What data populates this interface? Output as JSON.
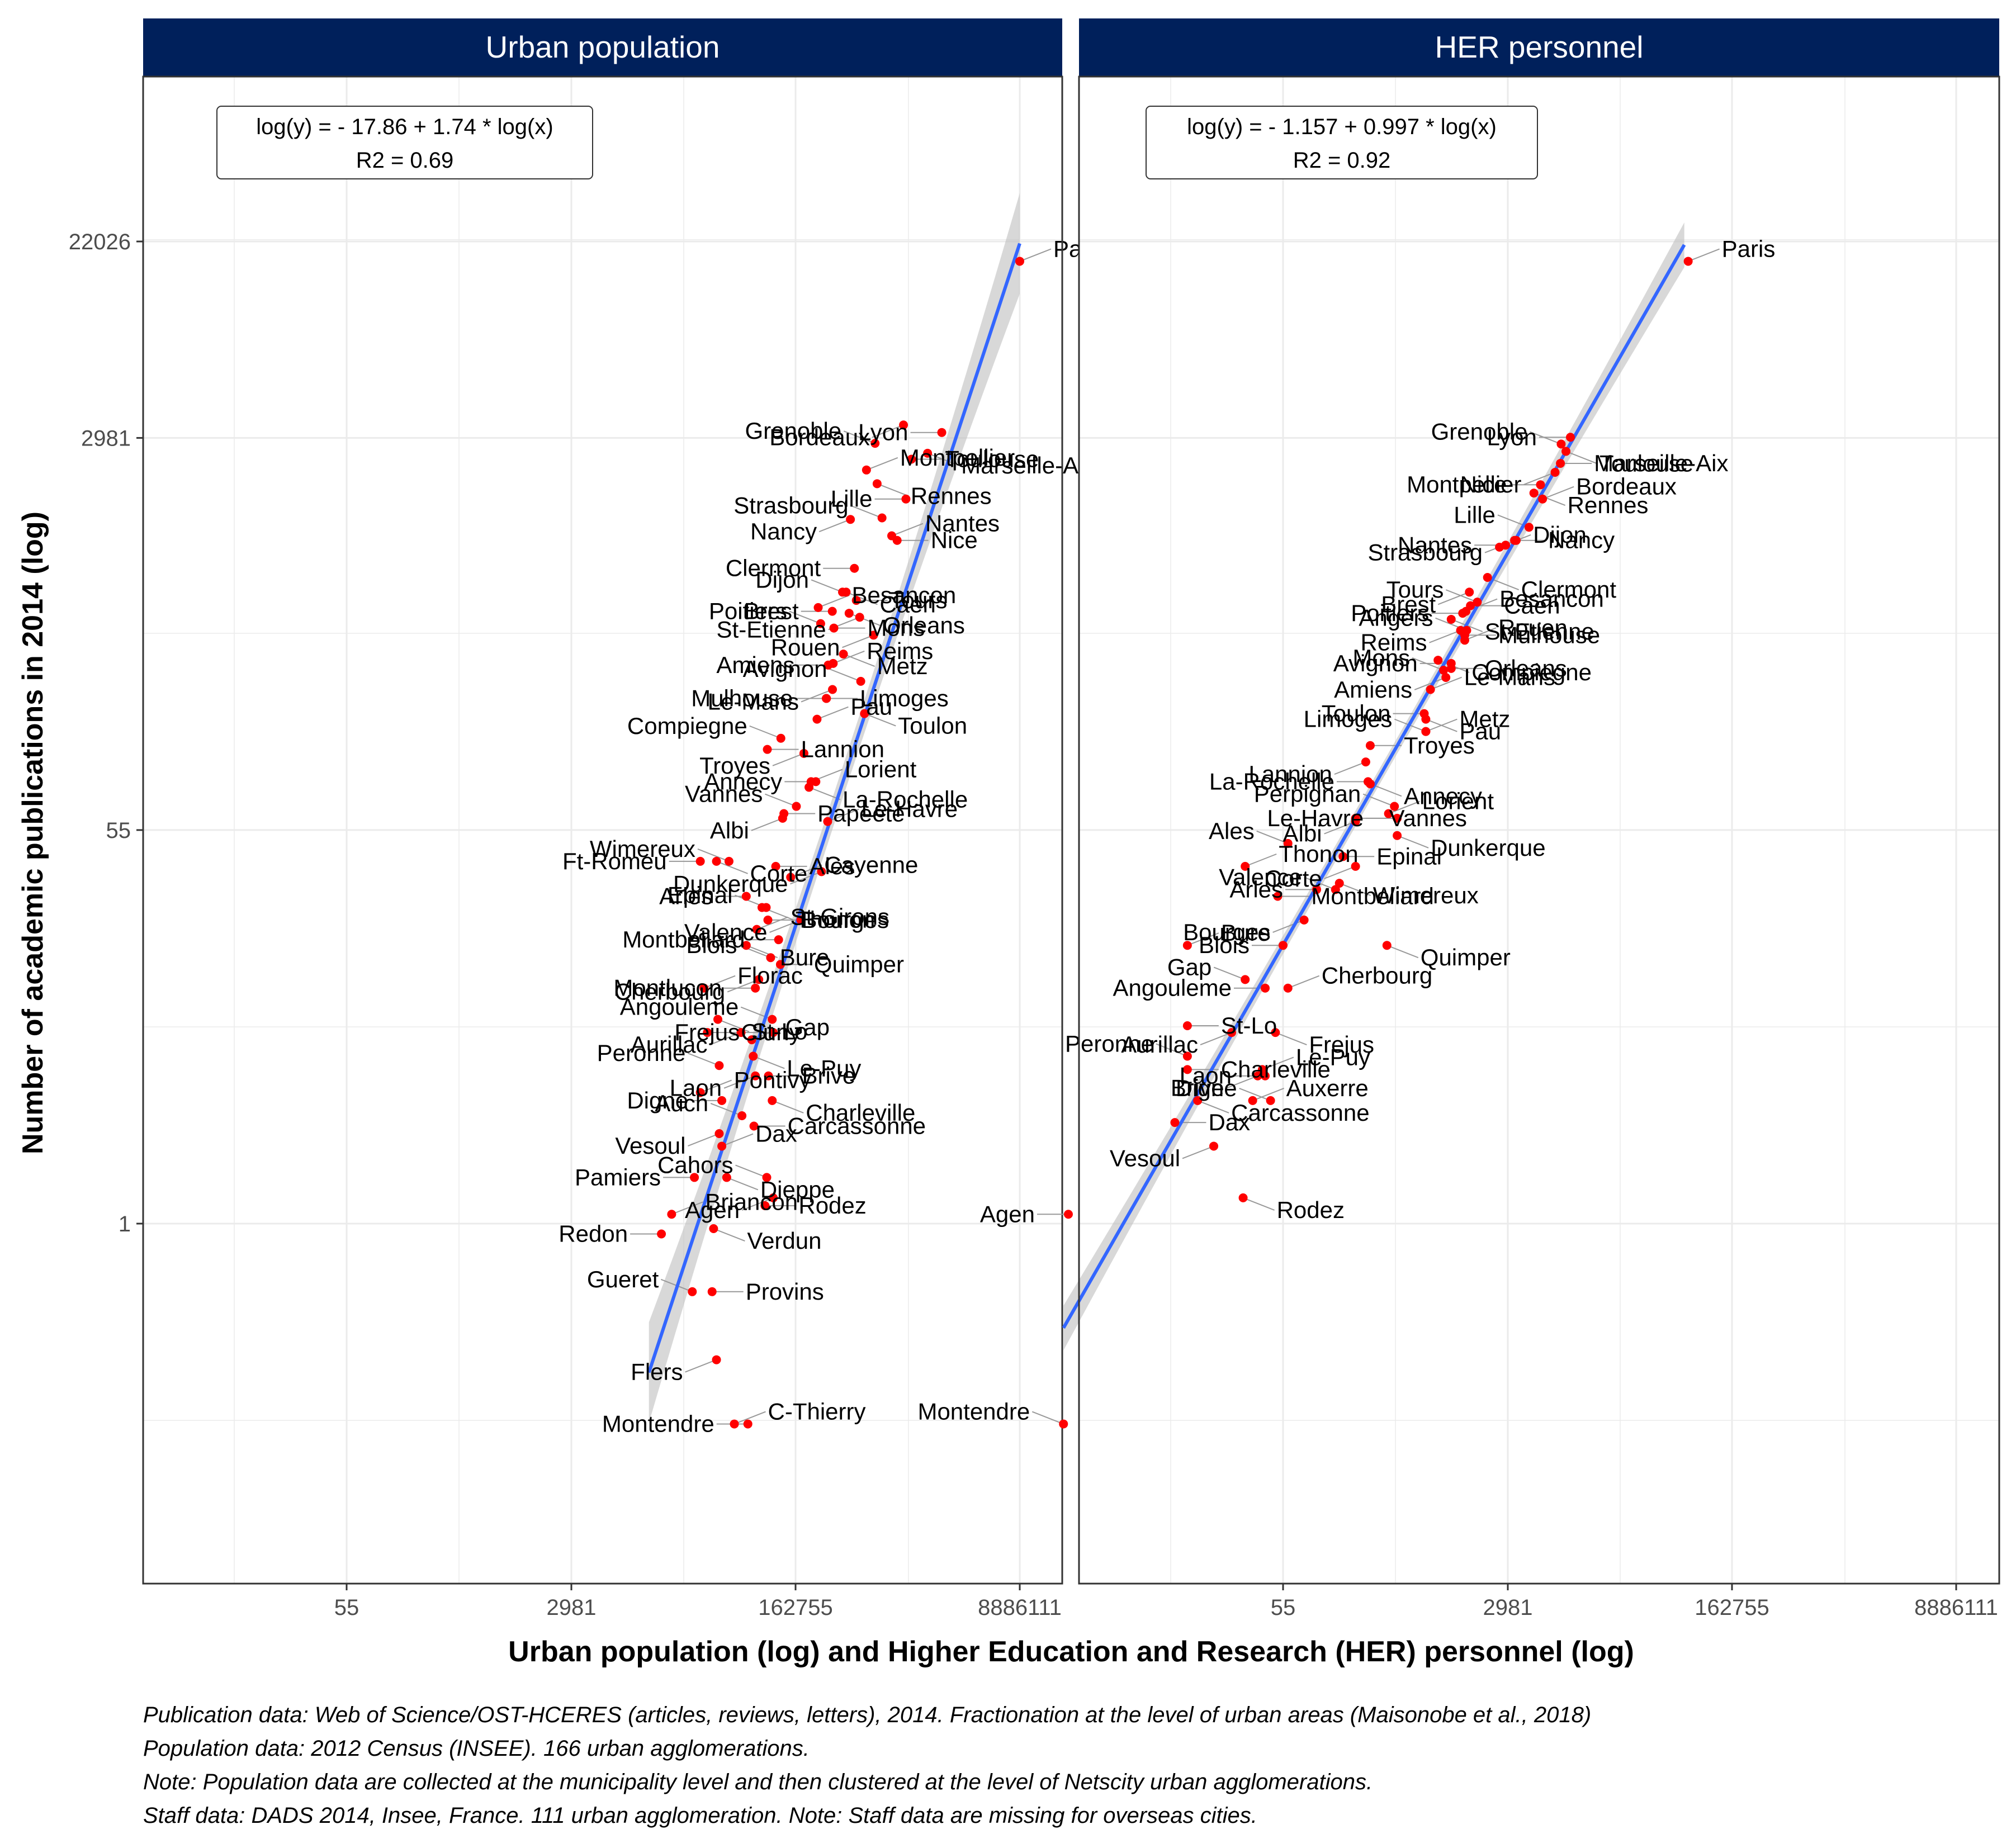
{
  "chart_data": {
    "type": "scatter",
    "x_scale": "log",
    "y_scale": "log",
    "ylabel": "Number of academic publications in 2014 (log)",
    "xlabel": "Urban population (log) and Higher Education and Research (HER) personnel (log)",
    "y_ticks": [
      "1",
      "55",
      "2981",
      "22026"
    ],
    "y_tick_values": [
      1,
      55,
      2981,
      22026
    ],
    "y_range": [
      0.04,
      100000
    ],
    "grid": true,
    "legend": "none",
    "colors": {
      "points": "#ff0000",
      "regression_line": "#3366ff",
      "confidence_band": "#bebebe",
      "strip": "#00205b",
      "leader_lines": "#999999",
      "grid": "#ebebeb"
    },
    "panels": [
      {
        "title": "Urban population",
        "x_ticks": [
          "55",
          "2981",
          "162755",
          "8886111"
        ],
        "x_tick_values": [
          55,
          2981,
          162755,
          8886111
        ],
        "x_range": [
          2.5,
          35000000
        ],
        "equation": "log(y) = - 17.86 + 1.74 * log(x)",
        "r2": "R2 = 0.69",
        "regression": {
          "intercept": -17.86,
          "slope": 1.74,
          "x_from": 12000,
          "x_to": 8886111
        },
        "labelled_points": [
          {
            "label": "Paris",
            "x": 8886111,
            "y": 18000
          },
          {
            "label": "Lyon",
            "x": 2215000,
            "y": 3150
          },
          {
            "label": "Marseille-Aix",
            "x": 1720000,
            "y": 2550
          },
          {
            "label": "Grenoble",
            "x": 675000,
            "y": 2820
          },
          {
            "label": "Toulouse",
            "x": 1290000,
            "y": 2400
          },
          {
            "label": "Bordeaux",
            "x": 1120000,
            "y": 3400
          },
          {
            "label": "Montpellier",
            "x": 579000,
            "y": 2150
          },
          {
            "label": "Lille",
            "x": 1170000,
            "y": 1600
          },
          {
            "label": "Rennes",
            "x": 700000,
            "y": 1870
          },
          {
            "label": "Strasbourg",
            "x": 764000,
            "y": 1320
          },
          {
            "label": "Nice",
            "x": 1000000,
            "y": 1050
          },
          {
            "label": "Nancy",
            "x": 435000,
            "y": 1300
          },
          {
            "label": "Nantes",
            "x": 908000,
            "y": 1100
          },
          {
            "label": "Clermont",
            "x": 467000,
            "y": 790
          },
          {
            "label": "Caen",
            "x": 403000,
            "y": 620
          },
          {
            "label": "Dijon",
            "x": 378000,
            "y": 620
          },
          {
            "label": "Tours",
            "x": 483000,
            "y": 570
          },
          {
            "label": "St-Etienne",
            "x": 513000,
            "y": 480
          },
          {
            "label": "Besancon",
            "x": 245000,
            "y": 530
          },
          {
            "label": "Brest",
            "x": 315000,
            "y": 510
          },
          {
            "label": "Orleans",
            "x": 425000,
            "y": 500
          },
          {
            "label": "Poitiers",
            "x": 256000,
            "y": 450
          },
          {
            "label": "Mons",
            "x": 324000,
            "y": 430
          },
          {
            "label": "Rouen",
            "x": 657000,
            "y": 400
          },
          {
            "label": "Reims",
            "x": 320000,
            "y": 300
          },
          {
            "label": "Amiens",
            "x": 293000,
            "y": 295
          },
          {
            "label": "Metz",
            "x": 384000,
            "y": 330
          },
          {
            "label": "Avignon",
            "x": 523000,
            "y": 250
          },
          {
            "label": "Limoges",
            "x": 283000,
            "y": 210
          },
          {
            "label": "Le-Mans",
            "x": 316000,
            "y": 230
          },
          {
            "label": "Pau",
            "x": 240000,
            "y": 170
          },
          {
            "label": "Mulhouse",
            "x": 284000,
            "y": 210
          },
          {
            "label": "Toulon",
            "x": 559000,
            "y": 180
          },
          {
            "label": "Compiegne",
            "x": 126000,
            "y": 140
          },
          {
            "label": "Lannion",
            "x": 99000,
            "y": 125
          },
          {
            "label": "Troyes",
            "x": 190000,
            "y": 120
          },
          {
            "label": "Lorient",
            "x": 216000,
            "y": 90
          },
          {
            "label": "Annecy",
            "x": 235000,
            "y": 90
          },
          {
            "label": "La-Rochelle",
            "x": 208000,
            "y": 85
          },
          {
            "label": "Vannes",
            "x": 166000,
            "y": 70
          },
          {
            "label": "Papeete",
            "x": 133000,
            "y": 65
          },
          {
            "label": "Albi",
            "x": 130000,
            "y": 62
          },
          {
            "label": "Le-Havre",
            "x": 290000,
            "y": 60
          },
          {
            "label": "Ft-Romeu",
            "x": 30000,
            "y": 40
          },
          {
            "label": "Corte",
            "x": 40000,
            "y": 40
          },
          {
            "label": "Wimereux",
            "x": 50000,
            "y": 40
          },
          {
            "label": "Ales",
            "x": 115000,
            "y": 38
          },
          {
            "label": "Dunkerque",
            "x": 260000,
            "y": 36
          },
          {
            "label": "Cayenne",
            "x": 150000,
            "y": 34
          },
          {
            "label": "Arles",
            "x": 68000,
            "y": 28
          },
          {
            "label": "Thonon",
            "x": 90000,
            "y": 25
          },
          {
            "label": "Epinal",
            "x": 97000,
            "y": 25
          },
          {
            "label": "Bourges",
            "x": 100000,
            "y": 22
          },
          {
            "label": "Valence",
            "x": 180000,
            "y": 22
          },
          {
            "label": "St-Girons",
            "x": 82000,
            "y": 20
          },
          {
            "label": "Montbeliard",
            "x": 121000,
            "y": 18
          },
          {
            "label": "Bure",
            "x": 68000,
            "y": 17
          },
          {
            "label": "Blois",
            "x": 105000,
            "y": 15
          },
          {
            "label": "Quimper",
            "x": 125000,
            "y": 14
          },
          {
            "label": "Cherbourg",
            "x": 85000,
            "y": 12
          },
          {
            "label": "Florac",
            "x": 32000,
            "y": 11
          },
          {
            "label": "Montlucon",
            "x": 80000,
            "y": 11
          },
          {
            "label": "St-Lo",
            "x": 41000,
            "y": 8
          },
          {
            "label": "Angouleme",
            "x": 108000,
            "y": 8
          },
          {
            "label": "Cluny",
            "x": 34000,
            "y": 7
          },
          {
            "label": "Aurillac",
            "x": 62000,
            "y": 7
          },
          {
            "label": "Gap",
            "x": 75000,
            "y": 6.5
          },
          {
            "label": "Frejus",
            "x": 110000,
            "y": 7
          },
          {
            "label": "Le-Puy",
            "x": 77000,
            "y": 5.5
          },
          {
            "label": "Peronne",
            "x": 42000,
            "y": 5
          },
          {
            "label": "Brive",
            "x": 101000,
            "y": 4.5
          },
          {
            "label": "Laon",
            "x": 80000,
            "y": 4.5
          },
          {
            "label": "Pontivy",
            "x": 30000,
            "y": 3.8
          },
          {
            "label": "Digne",
            "x": 44000,
            "y": 3.5
          },
          {
            "label": "Charleville",
            "x": 108000,
            "y": 3.5
          },
          {
            "label": "Auch",
            "x": 63000,
            "y": 3
          },
          {
            "label": "Carcassonne",
            "x": 78000,
            "y": 2.7
          },
          {
            "label": "Vesoul",
            "x": 42000,
            "y": 2.5
          },
          {
            "label": "Dax",
            "x": 44000,
            "y": 2.2
          },
          {
            "label": "Pamiers",
            "x": 27000,
            "y": 1.6
          },
          {
            "label": "Dieppe",
            "x": 48000,
            "y": 1.6
          },
          {
            "label": "Cahors",
            "x": 98000,
            "y": 1.6
          },
          {
            "label": "Rodez",
            "x": 95000,
            "y": 1.2
          },
          {
            "label": "Agen",
            "x": 110000,
            "y": 1.3
          },
          {
            "label": "Briancon",
            "x": 18000,
            "y": 1.1
          },
          {
            "label": "Redon",
            "x": 15000,
            "y": 0.9
          },
          {
            "label": "Verdun",
            "x": 38000,
            "y": 0.95
          },
          {
            "label": "Gueret",
            "x": 26000,
            "y": 0.5
          },
          {
            "label": "Provins",
            "x": 37000,
            "y": 0.5
          },
          {
            "label": "Flers",
            "x": 40000,
            "y": 0.25
          },
          {
            "label": "C-Thierry",
            "x": 55000,
            "y": 0.13
          },
          {
            "label": "Montendre",
            "x": 70000,
            "y": 0.13
          }
        ]
      },
      {
        "title": "HER personnel",
        "x_ticks": [
          "55",
          "2981",
          "162755",
          "8886111"
        ],
        "x_tick_values": [
          55,
          2981,
          162755,
          8886111
        ],
        "x_range": [
          0.05,
          35000000
        ],
        "equation": "log(y) = - 1.157 + 0.997 * log(x)",
        "r2": "R2 = 0.92",
        "regression": {
          "intercept": -1.157,
          "slope": 0.997,
          "x_from": 1.1,
          "x_to": 70000
        },
        "labelled_points": [
          {
            "label": "Paris",
            "x": 75000,
            "y": 18000
          },
          {
            "label": "Lyon",
            "x": 9200,
            "y": 3000
          },
          {
            "label": "Toulouse",
            "x": 8500,
            "y": 2600
          },
          {
            "label": "Grenoble",
            "x": 7800,
            "y": 2800
          },
          {
            "label": "Marseille-Aix",
            "x": 7700,
            "y": 2300
          },
          {
            "label": "Montpellier",
            "x": 7000,
            "y": 2100
          },
          {
            "label": "Bordeaux",
            "x": 5600,
            "y": 1600
          },
          {
            "label": "Nice",
            "x": 5400,
            "y": 1850
          },
          {
            "label": "Rennes",
            "x": 4800,
            "y": 1700
          },
          {
            "label": "Lille",
            "x": 4400,
            "y": 1200
          },
          {
            "label": "Nancy",
            "x": 3400,
            "y": 1050
          },
          {
            "label": "Strasbourg",
            "x": 3500,
            "y": 1050
          },
          {
            "label": "Dijon",
            "x": 2600,
            "y": 980
          },
          {
            "label": "Nantes",
            "x": 2900,
            "y": 1000
          },
          {
            "label": "Clermont",
            "x": 2100,
            "y": 720
          },
          {
            "label": "Tours",
            "x": 1750,
            "y": 560
          },
          {
            "label": "Caen",
            "x": 1550,
            "y": 540
          },
          {
            "label": "Brest",
            "x": 1520,
            "y": 620
          },
          {
            "label": "Besancon",
            "x": 1430,
            "y": 510
          },
          {
            "label": "Poitiers",
            "x": 1350,
            "y": 500
          },
          {
            "label": "St-Etienne",
            "x": 1100,
            "y": 470
          },
          {
            "label": "Angers",
            "x": 1450,
            "y": 420
          },
          {
            "label": "Mulhouse",
            "x": 1400,
            "y": 400
          },
          {
            "label": "Reims",
            "x": 1300,
            "y": 420
          },
          {
            "label": "Rouen",
            "x": 1400,
            "y": 380
          },
          {
            "label": "Avignon",
            "x": 1100,
            "y": 300
          },
          {
            "label": "Compiegne",
            "x": 870,
            "y": 310
          },
          {
            "label": "Mons",
            "x": 960,
            "y": 280
          },
          {
            "label": "Orleans",
            "x": 1100,
            "y": 285
          },
          {
            "label": "Amiens",
            "x": 1000,
            "y": 260
          },
          {
            "label": "Le-Mans",
            "x": 760,
            "y": 230
          },
          {
            "label": "Toulon",
            "x": 680,
            "y": 180
          },
          {
            "label": "Pau",
            "x": 700,
            "y": 170
          },
          {
            "label": "Limoges",
            "x": 700,
            "y": 150
          },
          {
            "label": "Troyes",
            "x": 260,
            "y": 130
          },
          {
            "label": "Lannion",
            "x": 240,
            "y": 110
          },
          {
            "label": "Metz",
            "x": 700,
            "y": 150
          },
          {
            "label": "La-Rochelle",
            "x": 250,
            "y": 90
          },
          {
            "label": "Annecy",
            "x": 260,
            "y": 88
          },
          {
            "label": "Perpignan",
            "x": 400,
            "y": 70
          },
          {
            "label": "Vannes",
            "x": 200,
            "y": 62
          },
          {
            "label": "Albi",
            "x": 200,
            "y": 60
          },
          {
            "label": "Lorient",
            "x": 360,
            "y": 65
          },
          {
            "label": "Le-Havre",
            "x": 420,
            "y": 62
          },
          {
            "label": "Dunkerque",
            "x": 420,
            "y": 52
          },
          {
            "label": "Ales",
            "x": 60,
            "y": 48
          },
          {
            "label": "Epinal",
            "x": 160,
            "y": 42
          },
          {
            "label": "Corte",
            "x": 200,
            "y": 38
          },
          {
            "label": "Thonon",
            "x": 28,
            "y": 38
          },
          {
            "label": "Arles",
            "x": 100,
            "y": 30
          },
          {
            "label": "Wimereux",
            "x": 150,
            "y": 32
          },
          {
            "label": "Valence",
            "x": 140,
            "y": 30
          },
          {
            "label": "Montbeliard",
            "x": 50,
            "y": 28
          },
          {
            "label": "Bourges",
            "x": 80,
            "y": 22
          },
          {
            "label": "Bure",
            "x": 10,
            "y": 17
          },
          {
            "label": "Blois",
            "x": 55,
            "y": 17
          },
          {
            "label": "Quimper",
            "x": 350,
            "y": 17
          },
          {
            "label": "Gap",
            "x": 28,
            "y": 12
          },
          {
            "label": "St-Lo",
            "x": 10,
            "y": 7.5
          },
          {
            "label": "Aurillac",
            "x": 22,
            "y": 7
          },
          {
            "label": "Cherbourg",
            "x": 60,
            "y": 11
          },
          {
            "label": "Angouleme",
            "x": 40,
            "y": 11
          },
          {
            "label": "Frejus",
            "x": 48,
            "y": 7
          },
          {
            "label": "Peronne",
            "x": 10,
            "y": 5.5
          },
          {
            "label": "Charleville",
            "x": 10,
            "y": 4.8
          },
          {
            "label": "Brive",
            "x": 35,
            "y": 4.5
          },
          {
            "label": "Le-Puy",
            "x": 38,
            "y": 4.8
          },
          {
            "label": "Laon",
            "x": 40,
            "y": 4.5
          },
          {
            "label": "Carcassonne",
            "x": 12,
            "y": 3.5
          },
          {
            "label": "Digne",
            "x": 44,
            "y": 3.5
          },
          {
            "label": "Dax",
            "x": 8,
            "y": 2.8
          },
          {
            "label": "Vesoul",
            "x": 16,
            "y": 2.2
          },
          {
            "label": "Auxerre",
            "x": 32,
            "y": 3.5
          },
          {
            "label": "Agen",
            "x": 1.2,
            "y": 1.1
          },
          {
            "label": "Rodez",
            "x": 27,
            "y": 1.3
          },
          {
            "label": "Montendre",
            "x": 1.1,
            "y": 0.13
          }
        ]
      }
    ]
  },
  "caption": {
    "lines": [
      "Publication data: Web of Science/OST-HCERES (articles, reviews, letters), 2014. Fractionation at the level of urban areas (Maisonobe et al., 2018)",
      "Population data: 2012 Census (INSEE). 166 urban agglomerations.",
      "Note: Population data are collected at the municipality level and then clustered at the level of Netscity urban agglomerations.",
      "Staff data: DADS 2014, Insee, France. 111 urban agglomeration. Note: Staff data are missing for overseas cities."
    ]
  }
}
